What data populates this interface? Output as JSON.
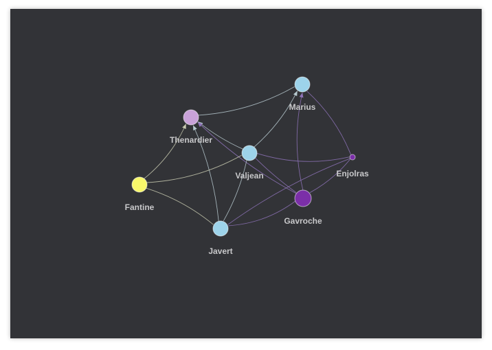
{
  "graph": {
    "background": "#323337",
    "label_color": "#c8c8ca",
    "nodes": [
      {
        "id": "thenardier",
        "label": "Thenardier",
        "color": "#c9a2d9"
      },
      {
        "id": "marius",
        "label": "Marius",
        "color": "#9dd3ea"
      },
      {
        "id": "valjean",
        "label": "Valjean",
        "color": "#9dd3ea"
      },
      {
        "id": "enjolras",
        "label": "Enjolras",
        "color": "#7b2fa8"
      },
      {
        "id": "fantine",
        "label": "Fantine",
        "color": "#f7f76a"
      },
      {
        "id": "gavroche",
        "label": "Gavroche",
        "color": "#7b2fa8"
      },
      {
        "id": "javert",
        "label": "Javert",
        "color": "#9dd3ea"
      }
    ],
    "edges": [
      {
        "source": "thenardier",
        "target": "marius",
        "color": "#b7c9cf"
      },
      {
        "source": "valjean",
        "target": "thenardier",
        "color": "#b7c9cf",
        "arrow": true
      },
      {
        "source": "gavroche",
        "target": "thenardier",
        "color": "#8e73b8",
        "arrow": true
      },
      {
        "source": "javert",
        "target": "thenardier",
        "color": "#b7c9cf",
        "arrow": true
      },
      {
        "source": "fantine",
        "target": "thenardier",
        "color": "#c8cab0",
        "arrow": true
      },
      {
        "source": "fantine",
        "target": "valjean",
        "color": "#c8cab0"
      },
      {
        "source": "fantine",
        "target": "javert",
        "color": "#c8cab0"
      },
      {
        "source": "valjean",
        "target": "marius",
        "color": "#b7c9cf",
        "arrow": true
      },
      {
        "source": "valjean",
        "target": "enjolras",
        "color": "#8e73b8"
      },
      {
        "source": "valjean",
        "target": "gavroche",
        "color": "#8e73b8"
      },
      {
        "source": "valjean",
        "target": "javert",
        "color": "#b7c9cf"
      },
      {
        "source": "gavroche",
        "target": "marius",
        "color": "#8e73b8",
        "arrow": true
      },
      {
        "source": "enjolras",
        "target": "marius",
        "color": "#8e73b8"
      },
      {
        "source": "enjolras",
        "target": "gavroche",
        "color": "#8e73b8"
      },
      {
        "source": "enjolras",
        "target": "javert",
        "color": "#8e73b8"
      },
      {
        "source": "gavroche",
        "target": "javert",
        "color": "#8e73b8"
      }
    ]
  }
}
